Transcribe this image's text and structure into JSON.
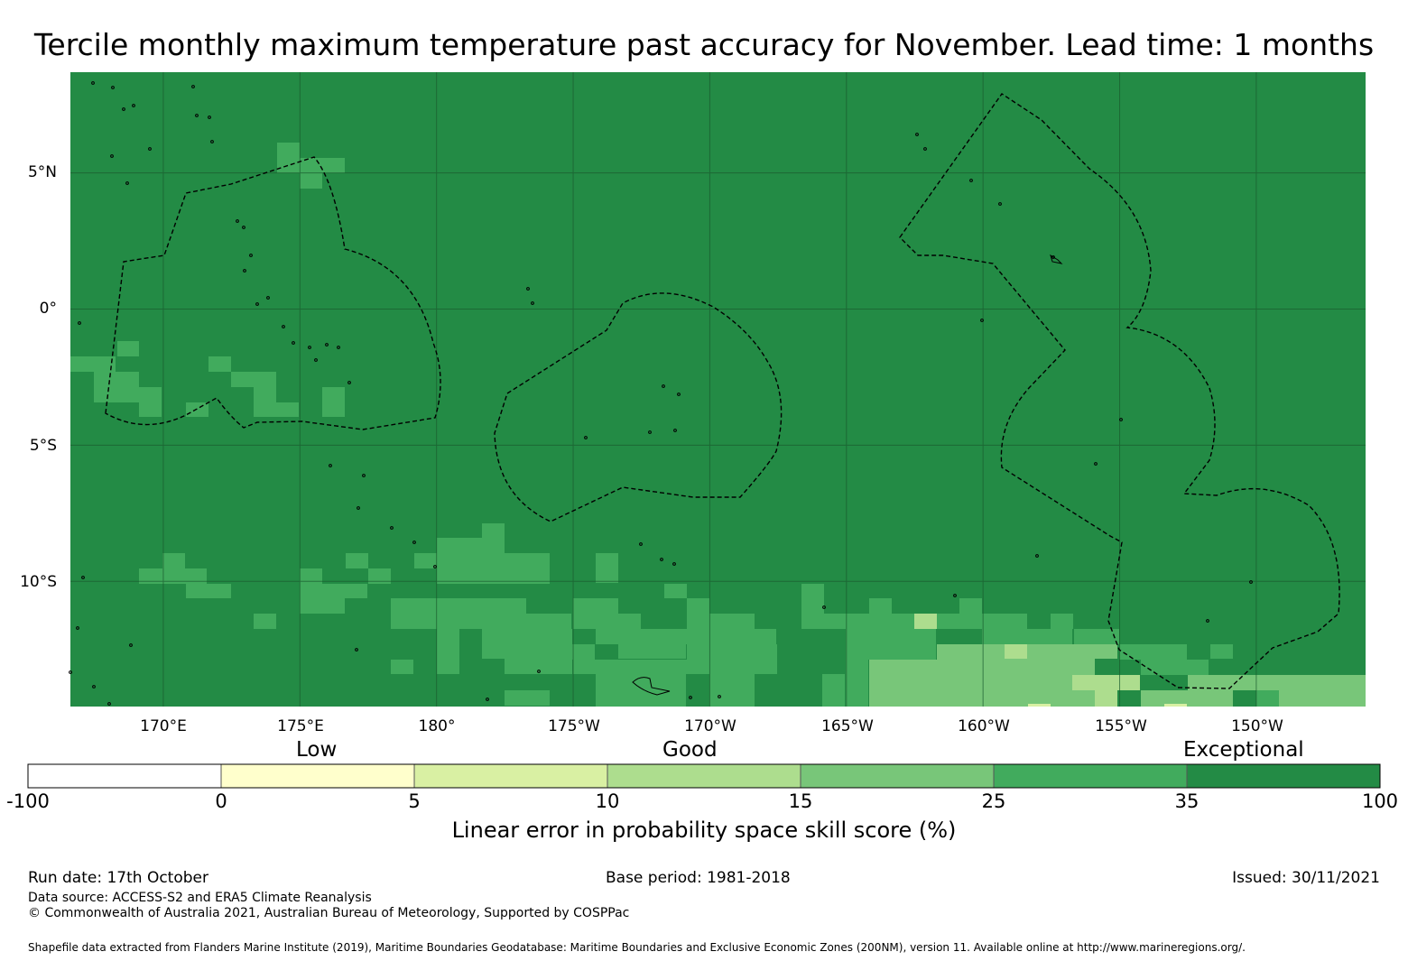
{
  "title": "Tercile monthly maximum temperature past accuracy for November. Lead time: 1 months",
  "map": {
    "latitude_labels": [
      "5°N",
      "0°",
      "5°S",
      "10°S"
    ],
    "longitude_labels": [
      "170°E",
      "175°E",
      "180°",
      "175°W",
      "170°W",
      "165°W",
      "160°W",
      "155°W",
      "150°W"
    ],
    "latitude_values": [
      5,
      0,
      -5,
      -10
    ],
    "longitude_values_east": [
      170,
      175,
      180,
      185,
      190,
      195,
      200,
      205,
      210
    ],
    "extent": {
      "lon_min": 166.6,
      "lon_max": 214.0,
      "lat_min": -14.6,
      "lat_max": 8.7
    },
    "base_color": "#238b45"
  },
  "legend": {
    "category_labels": [
      "Low",
      "Good",
      "Exceptional"
    ],
    "tick_labels": [
      "-100",
      "0",
      "5",
      "10",
      "15",
      "25",
      "35",
      "100"
    ],
    "colors": [
      "#ffffff",
      "#ffffcc",
      "#d9f0a3",
      "#addd8e",
      "#78c679",
      "#41ab5d",
      "#238b45"
    ],
    "title": "Linear error in probability space skill score (%)"
  },
  "footer": {
    "run_date": "Run date: 17th October",
    "base_period": "Base period: 1981-2018",
    "issued": "Issued: 30/11/2021",
    "data_source": "Data source: ACCESS-S2 and ERA5 Climate Reanalysis",
    "copyright": "© Commonwealth of Australia 2021, Australian Bureau of Meteorology, Supported by COSPPac",
    "shapefile": "Shapefile data extracted from Flanders Marine Institute (2019), Maritime Boundaries Geodatabase: Maritime Boundaries and Exclusive Economic Zones (200NM), version 11. Available online at http://www.marineregions.org/."
  }
}
